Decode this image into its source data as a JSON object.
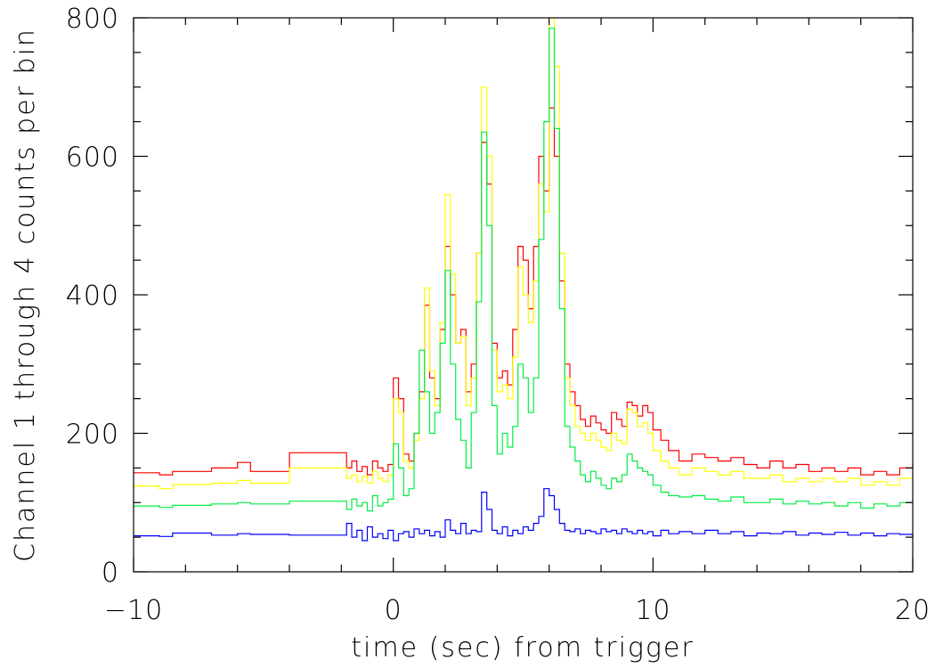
{
  "chart_data": {
    "type": "line",
    "xlabel": "time (sec) from trigger",
    "ylabel": "Channel 1 through 4 counts per bin",
    "xlim": [
      -10,
      20
    ],
    "ylim": [
      0,
      800
    ],
    "x_ticks": [
      -10,
      0,
      10,
      20
    ],
    "x_tick_labels": [
      "−10",
      "0",
      "10",
      "20"
    ],
    "y_ticks": [
      0,
      200,
      400,
      600,
      800
    ],
    "y_tick_labels": [
      "0",
      "200",
      "400",
      "600",
      "800"
    ],
    "grid": false,
    "legend": "none",
    "series": [
      {
        "color": "#ff0000",
        "x": [
          -10,
          -9,
          -8.5,
          -7,
          -6,
          -5.5,
          -4,
          -2,
          -1.8,
          -1.6,
          -1.4,
          -1.2,
          -1,
          -0.8,
          -0.6,
          -0.4,
          -0.2,
          0,
          0.2,
          0.4,
          0.6,
          0.8,
          1,
          1.2,
          1.4,
          1.6,
          1.8,
          2,
          2.2,
          2.4,
          2.6,
          2.8,
          3,
          3.2,
          3.4,
          3.6,
          3.8,
          4,
          4.2,
          4.4,
          4.6,
          4.8,
          5,
          5.2,
          5.4,
          5.6,
          5.8,
          6,
          6.2,
          6.4,
          6.6,
          6.8,
          7,
          7.2,
          7.4,
          7.6,
          7.8,
          8,
          8.2,
          8.4,
          8.6,
          8.8,
          9,
          9.2,
          9.4,
          9.6,
          9.8,
          10,
          10.3,
          10.6,
          11,
          11.5,
          12,
          12.5,
          13,
          13.5,
          14,
          14.5,
          15,
          15.5,
          16,
          16.5,
          17,
          17.5,
          18,
          18.5,
          19,
          19.5,
          20
        ],
        "y": [
          143,
          140,
          145,
          150,
          158,
          145,
          172,
          172,
          150,
          160,
          145,
          152,
          140,
          160,
          150,
          145,
          155,
          280,
          250,
          170,
          160,
          200,
          260,
          385,
          280,
          250,
          350,
          470,
          400,
          330,
          350,
          260,
          300,
          460,
          620,
          560,
          330,
          280,
          290,
          270,
          350,
          470,
          450,
          380,
          470,
          600,
          550,
          670,
          600,
          420,
          300,
          260,
          240,
          220,
          210,
          225,
          215,
          205,
          200,
          230,
          220,
          210,
          245,
          240,
          225,
          240,
          230,
          205,
          190,
          175,
          160,
          170,
          165,
          160,
          165,
          155,
          150,
          160,
          150,
          155,
          145,
          150,
          145,
          150,
          140,
          145,
          140,
          150,
          155
        ]
      },
      {
        "color": "#ffff00",
        "x": [
          -10,
          -9,
          -8.5,
          -7,
          -6,
          -5.5,
          -4,
          -2,
          -1.8,
          -1.6,
          -1.4,
          -1.2,
          -1,
          -0.8,
          -0.6,
          -0.4,
          -0.2,
          0,
          0.2,
          0.4,
          0.6,
          0.8,
          1,
          1.2,
          1.4,
          1.6,
          1.8,
          2,
          2.2,
          2.4,
          2.6,
          2.8,
          3,
          3.2,
          3.4,
          3.6,
          3.8,
          4,
          4.2,
          4.4,
          4.6,
          4.8,
          5,
          5.2,
          5.4,
          5.6,
          5.8,
          6,
          6.2,
          6.4,
          6.6,
          6.8,
          7,
          7.2,
          7.4,
          7.6,
          7.8,
          8,
          8.2,
          8.4,
          8.6,
          8.8,
          9,
          9.2,
          9.4,
          9.6,
          9.8,
          10,
          10.3,
          10.6,
          11,
          11.5,
          12,
          12.5,
          13,
          13.5,
          14,
          14.5,
          15,
          15.5,
          16,
          16.5,
          17,
          17.5,
          18,
          18.5,
          19,
          19.5,
          20
        ],
        "y": [
          124,
          120,
          126,
          128,
          132,
          128,
          150,
          150,
          135,
          140,
          130,
          138,
          128,
          145,
          135,
          130,
          140,
          250,
          230,
          160,
          150,
          190,
          250,
          410,
          290,
          240,
          360,
          545,
          430,
          330,
          340,
          240,
          280,
          460,
          700,
          600,
          320,
          260,
          270,
          250,
          310,
          440,
          400,
          360,
          420,
          560,
          520,
          800,
          730,
          460,
          280,
          240,
          210,
          200,
          190,
          200,
          190,
          180,
          175,
          200,
          190,
          185,
          235,
          230,
          210,
          215,
          200,
          175,
          160,
          150,
          140,
          150,
          145,
          140,
          145,
          135,
          135,
          140,
          130,
          135,
          130,
          135,
          130,
          135,
          125,
          130,
          125,
          135,
          140
        ]
      },
      {
        "color": "#00ee44",
        "x": [
          -10,
          -9,
          -8.5,
          -7,
          -6,
          -5.5,
          -4,
          -2,
          -1.8,
          -1.6,
          -1.4,
          -1.2,
          -1,
          -0.8,
          -0.6,
          -0.4,
          -0.2,
          0,
          0.2,
          0.4,
          0.6,
          0.8,
          1,
          1.2,
          1.4,
          1.6,
          1.8,
          2,
          2.2,
          2.4,
          2.6,
          2.8,
          3,
          3.2,
          3.4,
          3.6,
          3.8,
          4,
          4.2,
          4.4,
          4.6,
          4.8,
          5,
          5.2,
          5.4,
          5.6,
          5.8,
          6,
          6.2,
          6.4,
          6.6,
          6.8,
          7,
          7.2,
          7.4,
          7.6,
          7.8,
          8,
          8.2,
          8.4,
          8.6,
          8.8,
          9,
          9.2,
          9.4,
          9.6,
          9.8,
          10,
          10.3,
          10.6,
          11,
          11.5,
          12,
          12.5,
          13,
          13.5,
          14,
          14.5,
          15,
          15.5,
          16,
          16.5,
          17,
          17.5,
          18,
          18.5,
          19,
          19.5,
          20
        ],
        "y": [
          95,
          93,
          96,
          98,
          100,
          98,
          102,
          102,
          90,
          105,
          95,
          100,
          88,
          110,
          95,
          100,
          105,
          185,
          150,
          110,
          120,
          200,
          320,
          260,
          200,
          230,
          330,
          435,
          300,
          220,
          190,
          150,
          230,
          390,
          635,
          500,
          240,
          170,
          200,
          180,
          210,
          300,
          280,
          230,
          280,
          480,
          650,
          785,
          640,
          380,
          210,
          180,
          160,
          140,
          130,
          145,
          135,
          125,
          120,
          135,
          130,
          140,
          170,
          160,
          150,
          145,
          140,
          125,
          115,
          110,
          108,
          110,
          105,
          102,
          108,
          100,
          100,
          105,
          98,
          102,
          98,
          100,
          95,
          100,
          92,
          98,
          95,
          100,
          100
        ]
      },
      {
        "color": "#0000ff",
        "x": [
          -10,
          -9,
          -8.5,
          -7,
          -6,
          -5.5,
          -4,
          -2,
          -1.8,
          -1.6,
          -1.4,
          -1.2,
          -1,
          -0.8,
          -0.6,
          -0.4,
          -0.2,
          0,
          0.2,
          0.4,
          0.6,
          0.8,
          1,
          1.2,
          1.4,
          1.6,
          1.8,
          2,
          2.2,
          2.4,
          2.6,
          2.8,
          3,
          3.2,
          3.4,
          3.6,
          3.8,
          4,
          4.2,
          4.4,
          4.6,
          4.8,
          5,
          5.2,
          5.4,
          5.6,
          5.8,
          6,
          6.2,
          6.4,
          6.6,
          6.8,
          7,
          7.2,
          7.4,
          7.6,
          7.8,
          8,
          8.2,
          8.4,
          8.6,
          8.8,
          9,
          9.2,
          9.4,
          9.6,
          9.8,
          10,
          10.3,
          10.6,
          11,
          11.5,
          12,
          12.5,
          13,
          13.5,
          14,
          14.5,
          15,
          15.5,
          16,
          16.5,
          17,
          17.5,
          18,
          18.5,
          19,
          19.5,
          20
        ],
        "y": [
          52,
          51,
          56,
          53,
          55,
          54,
          53,
          53,
          70,
          50,
          60,
          45,
          65,
          50,
          55,
          48,
          60,
          45,
          55,
          58,
          50,
          62,
          55,
          60,
          52,
          58,
          50,
          75,
          60,
          55,
          70,
          55,
          60,
          58,
          115,
          90,
          60,
          55,
          65,
          52,
          60,
          55,
          65,
          60,
          70,
          80,
          120,
          110,
          90,
          70,
          60,
          58,
          62,
          55,
          60,
          58,
          55,
          62,
          58,
          60,
          55,
          62,
          58,
          55,
          60,
          55,
          58,
          52,
          60,
          55,
          58,
          55,
          60,
          55,
          58,
          52,
          56,
          55,
          58,
          53,
          56,
          54,
          57,
          53,
          56,
          52,
          55,
          54,
          50
        ]
      }
    ]
  }
}
